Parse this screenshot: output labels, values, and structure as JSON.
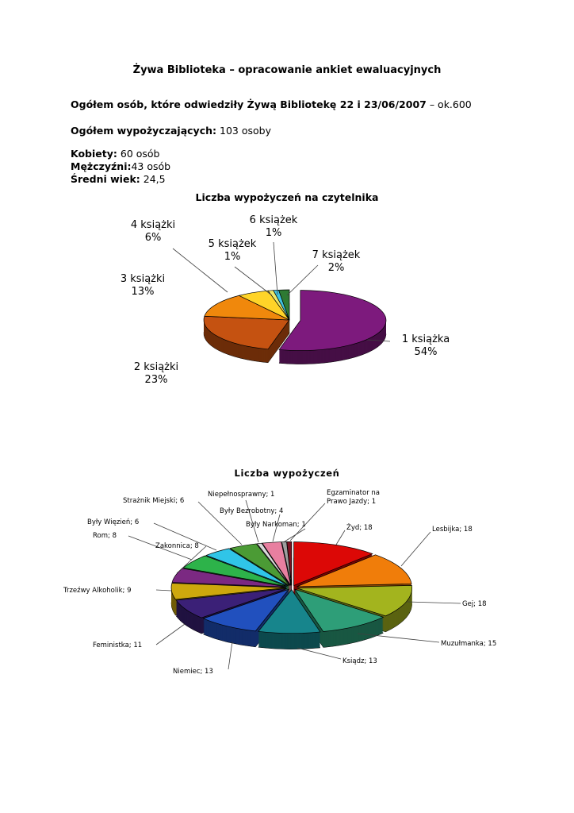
{
  "doc": {
    "title": "Żywa Biblioteka – opracowanie ankiet ewaluacyjnych",
    "stats": {
      "visitors_bold": "Ogółem osób, które odwiedziły Żywą Bibliotekę 22 i 23/06/2007",
      "visitors_tail": " – ok.600",
      "borrowers_label": "Ogółem wypożyczających:",
      "borrowers_value": " 103 osoby",
      "women_label": "Kobiety:",
      "women_value": " 60 osób",
      "men_label": "Mężczyźni:",
      "men_value": "43 osób",
      "age_label": "Średni wiek:",
      "age_value": " 24,5"
    }
  },
  "chart_data": [
    {
      "type": "pie",
      "style": "3d-exploded",
      "title": "Liczba wypożyczeń na czytelnika",
      "unit": "percent",
      "legend_position": "none",
      "slices": [
        {
          "label": "1 książka",
          "pct": "54%",
          "value": 54,
          "color": "#7D1A7D"
        },
        {
          "label": "2 książki",
          "pct": "23%",
          "value": 23,
          "color": "#C55211"
        },
        {
          "label": "3 książki",
          "pct": "13%",
          "value": 13,
          "color": "#F0880C"
        },
        {
          "label": "4 książki",
          "pct": "6%",
          "value": 6,
          "color": "#FFD428"
        },
        {
          "label": "5 książek",
          "pct": "1%",
          "value": 1,
          "color": "#EDE969"
        },
        {
          "label": "6 książek",
          "pct": "1%",
          "value": 1,
          "color": "#3FC3E0"
        },
        {
          "label": "7 książek",
          "pct": "2%",
          "value": 2,
          "color": "#2E7A33"
        }
      ]
    },
    {
      "type": "pie",
      "style": "3d-exploded",
      "title": "Liczba wypożyczeń",
      "unit": "count",
      "legend_position": "none",
      "slices": [
        {
          "label": "Żyd",
          "value": 18,
          "display": "Żyd; 18",
          "color": "#DC0806"
        },
        {
          "label": "Lesbijka",
          "value": 18,
          "display": "Lesbijka; 18",
          "color": "#F07D0A"
        },
        {
          "label": "Gej",
          "value": 18,
          "display": "Gej; 18",
          "color": "#A3B41E"
        },
        {
          "label": "Muzułmanka",
          "value": 15,
          "display": "Muzułmanka; 15",
          "color": "#2E9E78"
        },
        {
          "label": "Ksiądz",
          "value": 13,
          "display": "Ksiądz; 13",
          "color": "#17858C"
        },
        {
          "label": "Niemiec",
          "value": 13,
          "display": "Niemiec; 13",
          "color": "#2150BE"
        },
        {
          "label": "Feministka",
          "value": 11,
          "display": "Feministka; 11",
          "color": "#3B2077"
        },
        {
          "label": "Trzeźwy Alkoholik",
          "value": 9,
          "display": "Trzeźwy Alkoholik; 9",
          "color": "#CDA80D"
        },
        {
          "label": "Zakonnica",
          "value": 8,
          "display": "Zakonnica; 8",
          "color": "#7B2982"
        },
        {
          "label": "Rom",
          "value": 8,
          "display": "Rom; 8",
          "color": "#2DB34A"
        },
        {
          "label": "Były Więzień",
          "value": 6,
          "display": "Były Więzień; 6",
          "color": "#30C5E8"
        },
        {
          "label": "Strażnik Miejski",
          "value": 6,
          "display": "Strażnik Miejski; 6",
          "color": "#4B9B35"
        },
        {
          "label": "Niepełnosprawny",
          "value": 1,
          "display": "Niepełnosprawny; 1",
          "color": "#D9D9D9"
        },
        {
          "label": "Były Bezrobotny",
          "value": 4,
          "display": "Były Bezrobotny; 4",
          "color": "#E87FA0"
        },
        {
          "label": "Były Narkoman",
          "value": 1,
          "display": "Były Narkoman; 1",
          "color": "#9E9E9E"
        },
        {
          "label": "Egzaminator na Prawo Jazdy",
          "value": 1,
          "display": "Egzaminator na Prawo Jazdy; 1",
          "color": "#7E1021"
        }
      ]
    }
  ]
}
